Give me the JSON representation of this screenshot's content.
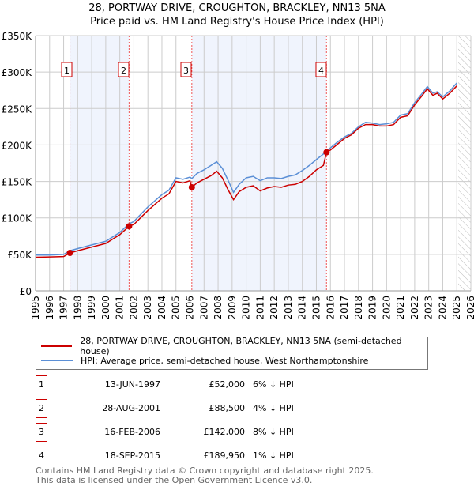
{
  "title": "28, PORTWAY DRIVE, CROUGHTON, BRACKLEY, NN13 5NA",
  "subtitle": "Price paid vs. HM Land Registry's House Price Index (HPI)",
  "chart_data": {
    "type": "line",
    "ylabel": "",
    "xlabel": "",
    "ylim": [
      0,
      350000
    ],
    "xlim": [
      1995,
      2026
    ],
    "y_ticks": [
      {
        "v": 0,
        "label": "£0"
      },
      {
        "v": 50000,
        "label": "£50K"
      },
      {
        "v": 100000,
        "label": "£100K"
      },
      {
        "v": 150000,
        "label": "£150K"
      },
      {
        "v": 200000,
        "label": "£200K"
      },
      {
        "v": 250000,
        "label": "£250K"
      },
      {
        "v": 300000,
        "label": "£300K"
      },
      {
        "v": 350000,
        "label": "£350K"
      }
    ],
    "x_ticks": [
      "1995",
      "1996",
      "1997",
      "1998",
      "1999",
      "2000",
      "2001",
      "2002",
      "2003",
      "2004",
      "2005",
      "2006",
      "2007",
      "2008",
      "2009",
      "2010",
      "2011",
      "2012",
      "2013",
      "2014",
      "2015",
      "2016",
      "2017",
      "2018",
      "2019",
      "2020",
      "2021",
      "2022",
      "2023",
      "2024",
      "2025",
      "2026"
    ],
    "shaded_ranges": [
      [
        1997.45,
        2001.66
      ],
      [
        2006.13,
        2015.72
      ]
    ],
    "future_from": 2025.1,
    "series": [
      {
        "name": "28, PORTWAY DRIVE, CROUGHTON, BRACKLEY, NN13 5NA (semi-detached house)",
        "color": "#cc0000",
        "points": [
          [
            1995,
            46000
          ],
          [
            1996,
            46500
          ],
          [
            1997,
            47000
          ],
          [
            1997.45,
            52000
          ],
          [
            1998,
            55000
          ],
          [
            1999,
            60000
          ],
          [
            2000,
            65000
          ],
          [
            2001,
            77000
          ],
          [
            2001.66,
            88500
          ],
          [
            2002,
            91000
          ],
          [
            2003,
            110000
          ],
          [
            2004,
            127000
          ],
          [
            2004.5,
            133000
          ],
          [
            2005,
            150000
          ],
          [
            2005.5,
            148000
          ],
          [
            2006,
            151000
          ],
          [
            2006.13,
            142000
          ],
          [
            2006.5,
            148000
          ],
          [
            2007,
            153000
          ],
          [
            2007.5,
            158000
          ],
          [
            2007.9,
            164000
          ],
          [
            2008.3,
            155000
          ],
          [
            2008.7,
            139000
          ],
          [
            2009.1,
            125000
          ],
          [
            2009.5,
            136000
          ],
          [
            2010,
            142000
          ],
          [
            2010.5,
            144000
          ],
          [
            2011,
            137000
          ],
          [
            2011.5,
            141000
          ],
          [
            2012,
            143000
          ],
          [
            2012.5,
            142000
          ],
          [
            2013,
            145000
          ],
          [
            2013.5,
            146000
          ],
          [
            2014,
            150000
          ],
          [
            2014.5,
            157000
          ],
          [
            2015,
            166000
          ],
          [
            2015.5,
            172000
          ],
          [
            2015.72,
            189950
          ],
          [
            2016,
            193000
          ],
          [
            2016.5,
            201000
          ],
          [
            2017,
            209000
          ],
          [
            2017.5,
            214000
          ],
          [
            2018,
            223000
          ],
          [
            2018.5,
            228000
          ],
          [
            2019,
            228000
          ],
          [
            2019.5,
            226000
          ],
          [
            2020,
            226000
          ],
          [
            2020.5,
            228000
          ],
          [
            2021,
            238000
          ],
          [
            2021.5,
            240000
          ],
          [
            2022,
            255000
          ],
          [
            2022.5,
            267000
          ],
          [
            2022.9,
            277000
          ],
          [
            2023.3,
            268000
          ],
          [
            2023.6,
            271000
          ],
          [
            2024,
            263000
          ],
          [
            2024.5,
            271000
          ],
          [
            2025,
            281000
          ]
        ]
      },
      {
        "name": "HPI: Average price, semi-detached house, West Northamptonshire",
        "color": "#5b8fd6",
        "points": [
          [
            1995,
            49000
          ],
          [
            1996,
            49000
          ],
          [
            1997,
            50000
          ],
          [
            1997.45,
            55000
          ],
          [
            1998,
            58000
          ],
          [
            1999,
            63000
          ],
          [
            2000,
            68000
          ],
          [
            2001,
            80000
          ],
          [
            2001.66,
            92000
          ],
          [
            2002,
            95000
          ],
          [
            2003,
            115000
          ],
          [
            2004,
            132000
          ],
          [
            2004.5,
            138000
          ],
          [
            2005,
            155000
          ],
          [
            2005.5,
            153000
          ],
          [
            2006,
            156000
          ],
          [
            2006.13,
            154000
          ],
          [
            2006.5,
            161000
          ],
          [
            2007,
            166000
          ],
          [
            2007.5,
            172000
          ],
          [
            2007.9,
            177000
          ],
          [
            2008.3,
            168000
          ],
          [
            2008.7,
            152000
          ],
          [
            2009.1,
            135000
          ],
          [
            2009.5,
            146000
          ],
          [
            2010,
            155000
          ],
          [
            2010.5,
            157000
          ],
          [
            2011,
            151000
          ],
          [
            2011.5,
            155000
          ],
          [
            2012,
            155000
          ],
          [
            2012.5,
            154000
          ],
          [
            2013,
            157000
          ],
          [
            2013.5,
            159000
          ],
          [
            2014,
            165000
          ],
          [
            2014.5,
            172000
          ],
          [
            2015,
            180000
          ],
          [
            2015.72,
            191000
          ],
          [
            2016,
            196000
          ],
          [
            2016.5,
            204000
          ],
          [
            2017,
            211000
          ],
          [
            2017.5,
            216000
          ],
          [
            2018,
            225000
          ],
          [
            2018.5,
            231000
          ],
          [
            2019,
            230000
          ],
          [
            2019.5,
            228000
          ],
          [
            2020,
            229000
          ],
          [
            2020.5,
            231000
          ],
          [
            2021,
            241000
          ],
          [
            2021.5,
            243000
          ],
          [
            2022,
            258000
          ],
          [
            2022.5,
            270000
          ],
          [
            2022.9,
            280000
          ],
          [
            2023.3,
            271000
          ],
          [
            2023.6,
            273000
          ],
          [
            2024,
            266000
          ],
          [
            2024.5,
            274000
          ],
          [
            2025,
            285000
          ]
        ]
      }
    ],
    "sales": [
      {
        "n": "1",
        "x": 1997.45,
        "y": 52000
      },
      {
        "n": "2",
        "x": 2001.66,
        "y": 88500
      },
      {
        "n": "3",
        "x": 2006.13,
        "y": 142000
      },
      {
        "n": "4",
        "x": 2015.72,
        "y": 189950
      }
    ]
  },
  "legend": {
    "property": "28, PORTWAY DRIVE, CROUGHTON, BRACKLEY, NN13 5NA (semi-detached house)",
    "hpi": "HPI: Average price, semi-detached house, West Northamptonshire"
  },
  "transactions": [
    {
      "n": "1",
      "date": "13-JUN-1997",
      "price": "£52,000",
      "hpi": "6% ↓ HPI"
    },
    {
      "n": "2",
      "date": "28-AUG-2001",
      "price": "£88,500",
      "hpi": "4% ↓ HPI"
    },
    {
      "n": "3",
      "date": "16-FEB-2006",
      "price": "£142,000",
      "hpi": "8% ↓ HPI"
    },
    {
      "n": "4",
      "date": "18-SEP-2015",
      "price": "£189,950",
      "hpi": "1% ↓ HPI"
    }
  ],
  "footer": {
    "line1": "Contains HM Land Registry data © Crown copyright and database right 2025.",
    "line2": "This data is licensed under the Open Government Licence v3.0."
  }
}
